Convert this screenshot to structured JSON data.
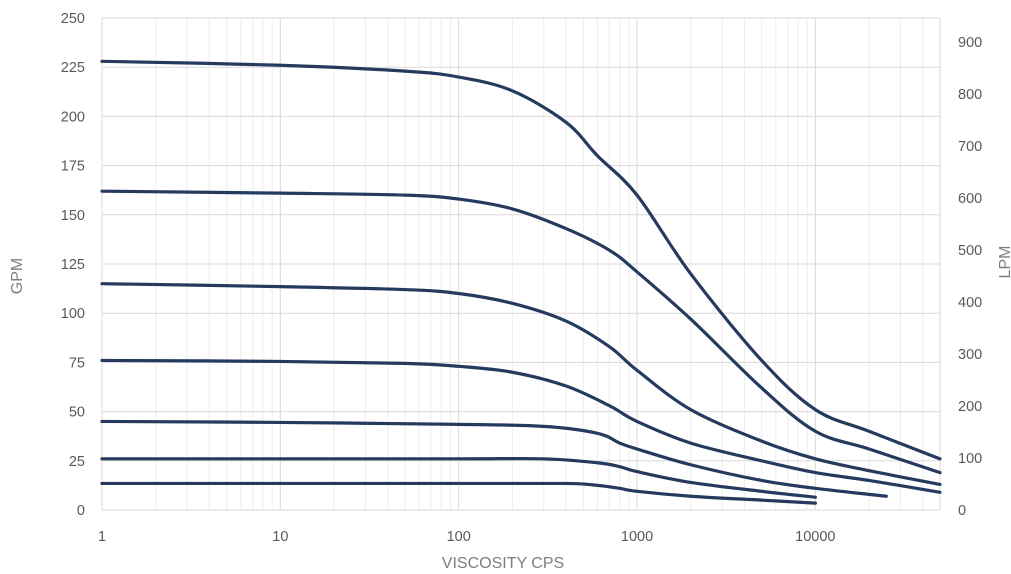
{
  "chart_data": {
    "type": "line",
    "title": "",
    "xlabel": "VISCOSITY CPS",
    "ylabel": "GPM",
    "y2label": "LPM",
    "xscale": "log",
    "xlim": [
      1,
      50000
    ],
    "ylim": [
      0,
      250
    ],
    "y2lim": [
      0,
      946.35
    ],
    "grid": true,
    "legend": "none",
    "line_color": "#253a5e",
    "x_ticks": [
      "1",
      "10",
      "100",
      "1000",
      "10000"
    ],
    "y_ticks": [
      "0",
      "25",
      "50",
      "75",
      "100",
      "125",
      "150",
      "175",
      "200",
      "225",
      "250"
    ],
    "y2_ticks": [
      "0",
      "100",
      "200",
      "300",
      "400",
      "500",
      "600",
      "700",
      "800",
      "900"
    ],
    "series": [
      {
        "x": [
          1,
          10,
          50,
          100,
          200,
          400,
          600,
          1000,
          2000,
          5000,
          10000,
          20000,
          50000
        ],
        "y": [
          228,
          226,
          223,
          220,
          213,
          197,
          180,
          160,
          120,
          76,
          51,
          40,
          26
        ]
      },
      {
        "x": [
          1,
          10,
          50,
          100,
          200,
          400,
          700,
          1000,
          2000,
          5000,
          10000,
          20000,
          50000
        ],
        "y": [
          162,
          161,
          160,
          158,
          153,
          143,
          132,
          121,
          97,
          62,
          40,
          31,
          19
        ]
      },
      {
        "x": [
          1,
          10,
          50,
          100,
          200,
          400,
          700,
          1000,
          2000,
          5000,
          10000,
          20000,
          50000
        ],
        "y": [
          115,
          113.5,
          112,
          110,
          105,
          96,
          83,
          71,
          51,
          35,
          26,
          20,
          13
        ]
      },
      {
        "x": [
          1,
          10,
          50,
          100,
          200,
          400,
          700,
          1000,
          2000,
          5000,
          10000,
          20000,
          50000
        ],
        "y": [
          76,
          75.5,
          74.5,
          73,
          70,
          63,
          53,
          45,
          34,
          25,
          19,
          15,
          9
        ]
      },
      {
        "x": [
          1,
          10,
          100,
          300,
          600,
          800,
          1000,
          2000,
          5000,
          10000,
          25000
        ],
        "y": [
          45,
          44.5,
          43.5,
          42.5,
          39,
          34,
          31,
          23,
          15,
          11,
          7
        ]
      },
      {
        "x": [
          1,
          10,
          100,
          300,
          600,
          800,
          1000,
          2000,
          5000,
          10000
        ],
        "y": [
          26,
          26,
          26,
          26,
          24,
          22,
          19.5,
          14,
          9.5,
          6.5
        ]
      },
      {
        "x": [
          1,
          10,
          100,
          400,
          600,
          800,
          1000,
          2000,
          5000,
          10000
        ],
        "y": [
          13.5,
          13.5,
          13.5,
          13.5,
          12.5,
          11,
          9.5,
          7,
          5,
          3.5
        ]
      }
    ]
  }
}
